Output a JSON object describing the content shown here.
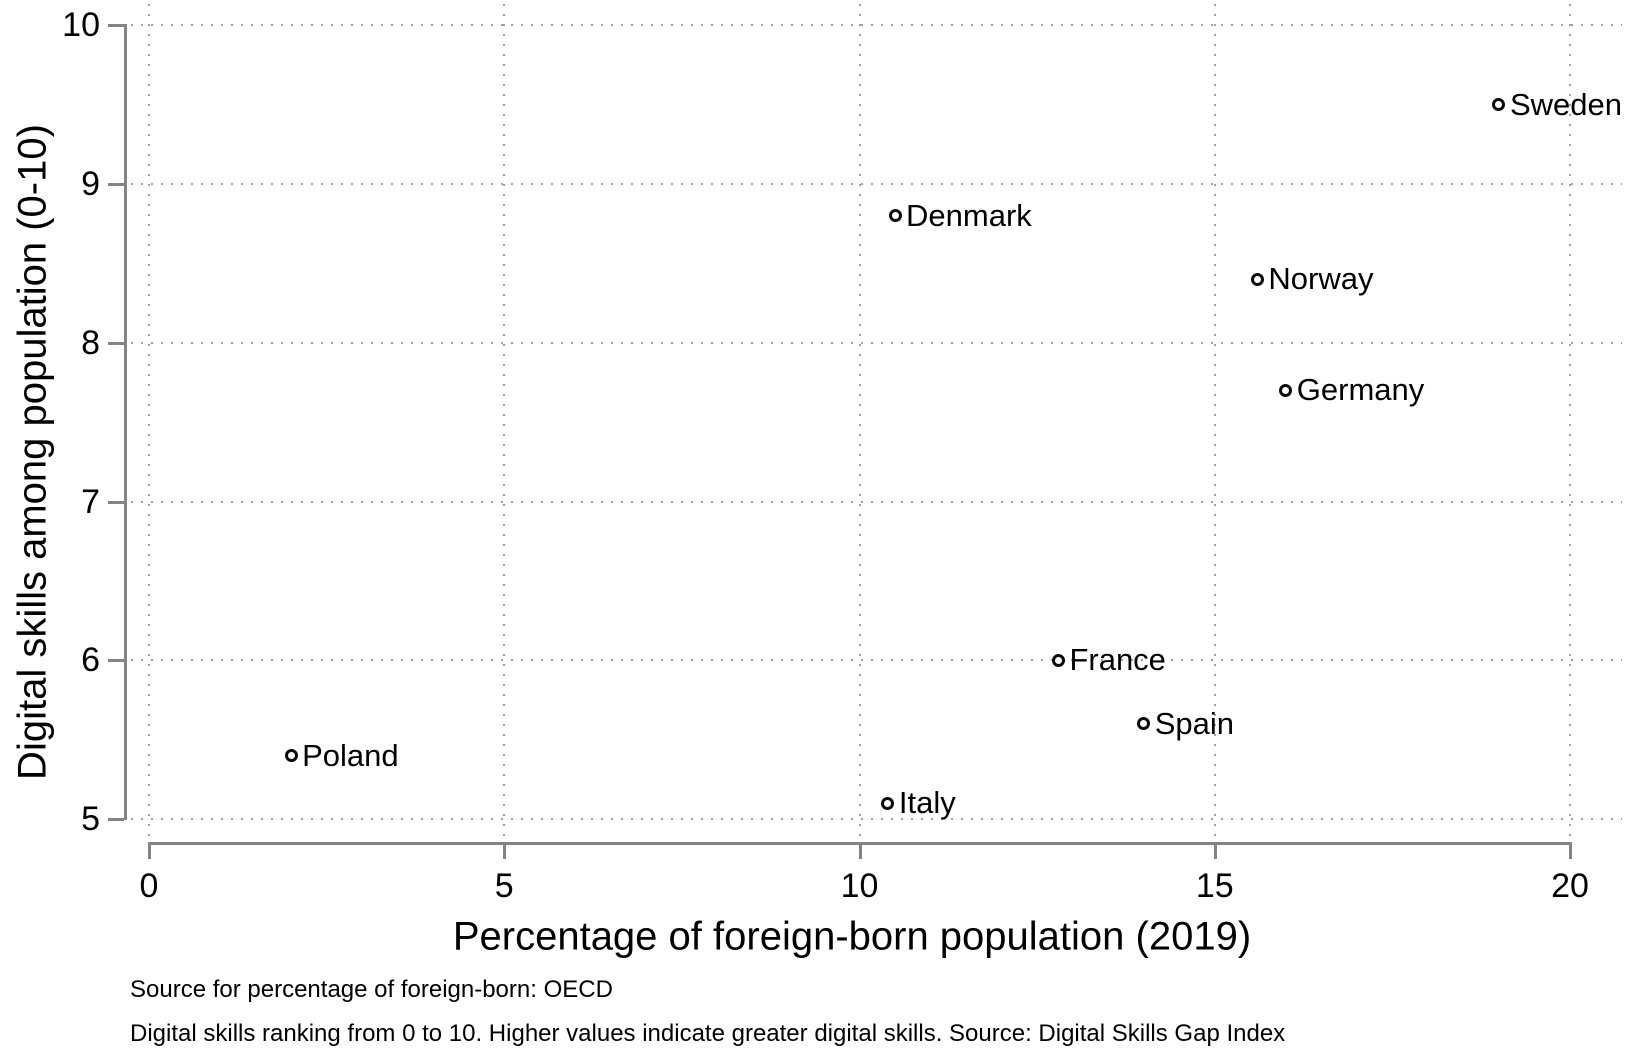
{
  "chart_data": {
    "type": "scatter",
    "title": "",
    "xlabel": "Percentage of foreign-born population (2019)",
    "ylabel": "Digital skills among population (0-10)",
    "xlim": [
      0,
      20
    ],
    "ylim": [
      5,
      10
    ],
    "x_ticks": [
      "0",
      "5",
      "10",
      "15",
      "20"
    ],
    "y_ticks": [
      "5",
      "6",
      "7",
      "8",
      "9",
      "10"
    ],
    "grid": "dotted-both-axes",
    "legend": "none",
    "marker_style": "hollow-circle",
    "points": [
      {
        "label": "Sweden",
        "x": 19.0,
        "y": 9.5
      },
      {
        "label": "Denmark",
        "x": 10.5,
        "y": 8.8
      },
      {
        "label": "Norway",
        "x": 15.6,
        "y": 8.4
      },
      {
        "label": "Germany",
        "x": 16.0,
        "y": 7.7
      },
      {
        "label": "France",
        "x": 12.8,
        "y": 6.0
      },
      {
        "label": "Spain",
        "x": 14.0,
        "y": 5.6
      },
      {
        "label": "Poland",
        "x": 2.0,
        "y": 5.4
      },
      {
        "label": "Italy",
        "x": 10.4,
        "y": 5.1
      }
    ],
    "notes": [
      "Source for percentage of foreign-born: OECD",
      "Digital skills ranking from 0 to 10. Higher values indicate greater digital skills. Source: Digital Skills Gap Index"
    ]
  },
  "colors": {
    "axis": "#848484",
    "grid_dots": "#a0a0a0",
    "text": "#000000",
    "marker_outline": "#0a0a0a",
    "background": "#ffffff"
  }
}
